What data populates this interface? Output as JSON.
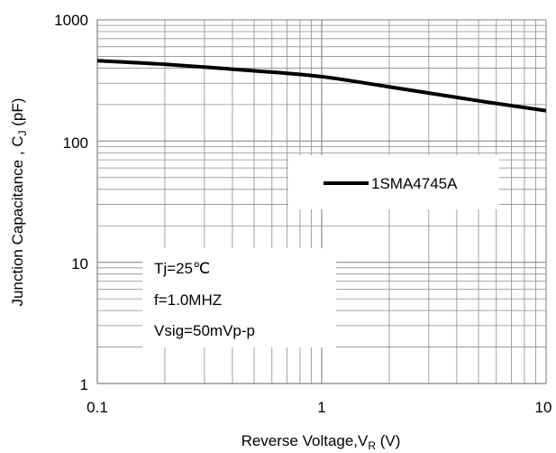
{
  "chart_data": {
    "type": "line",
    "x_scale": "log",
    "y_scale": "log",
    "xlim": [
      0.1,
      10
    ],
    "ylim": [
      1,
      1000
    ],
    "x_tick_labels": [
      "0.1",
      "1",
      "10"
    ],
    "y_tick_labels": [
      "1",
      "10",
      "100",
      "1000"
    ],
    "xlabel": {
      "main": "Reverse Voltage,V",
      "sub": "R",
      "tail": " (V)"
    },
    "ylabel": {
      "main": "Junction Capacitance , C",
      "sub": "J",
      "tail": " (pF)"
    },
    "grid": true,
    "legend_position": "center-right",
    "series": [
      {
        "name": "1SMA4745A",
        "color": "#000000",
        "x": [
          0.1,
          0.2,
          0.5,
          1,
          2,
          5,
          10
        ],
        "y": [
          460,
          430,
          380,
          340,
          280,
          215,
          178
        ]
      }
    ],
    "annotations": [
      "Tj=25℃",
      "f=1.0MHZ",
      "Vsig=50mVp-p"
    ]
  }
}
